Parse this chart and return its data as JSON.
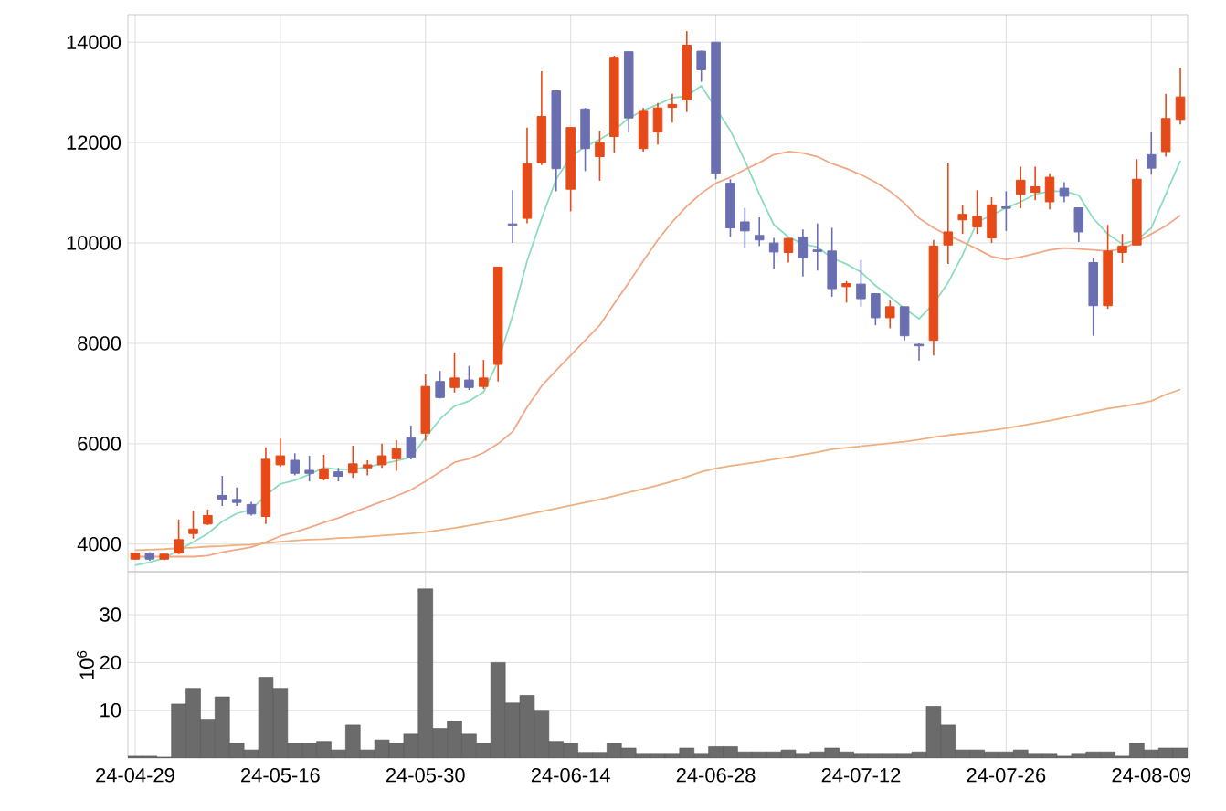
{
  "chart_data": [
    {
      "type": "candlestick",
      "tick_labels": "y",
      "grid": true,
      "categories": [
        null,
        null,
        null,
        null,
        null,
        null,
        null,
        null,
        null,
        null,
        null,
        null,
        null,
        null,
        null,
        null,
        null,
        null,
        null,
        null,
        null,
        null,
        null,
        null,
        null,
        null,
        null,
        null,
        null,
        null,
        null,
        null,
        null,
        null,
        null,
        null,
        null,
        null,
        null,
        null,
        null,
        null,
        null,
        null,
        null,
        null,
        null,
        null,
        null,
        null,
        null,
        null,
        null,
        null,
        null,
        null,
        null,
        null,
        null,
        null,
        null,
        null,
        null,
        null,
        null,
        null,
        null,
        null,
        null,
        null,
        null,
        null,
        null
      ],
      "ylim": [
        3450,
        14550
      ],
      "yticks": [
        4000,
        6000,
        8000,
        10000,
        12000,
        14000
      ],
      "ohlc": [
        [
          3700,
          3830,
          3690,
          3820
        ],
        [
          3820,
          3840,
          3670,
          3700
        ],
        [
          3700,
          3810,
          3680,
          3800
        ],
        [
          3820,
          4490,
          3800,
          4090
        ],
        [
          4210,
          4670,
          4110,
          4300
        ],
        [
          4400,
          4690,
          4380,
          4570
        ],
        [
          4970,
          5360,
          4760,
          4890
        ],
        [
          4890,
          5130,
          4760,
          4830
        ],
        [
          4790,
          4840,
          4570,
          4600
        ],
        [
          4550,
          5930,
          4400,
          5690
        ],
        [
          5580,
          6100,
          5540,
          5760
        ],
        [
          5670,
          5810,
          5370,
          5410
        ],
        [
          5470,
          5760,
          5250,
          5410
        ],
        [
          5300,
          5780,
          5270,
          5500
        ],
        [
          5440,
          5520,
          5250,
          5350
        ],
        [
          5420,
          5960,
          5320,
          5600
        ],
        [
          5520,
          5670,
          5370,
          5580
        ],
        [
          5580,
          6000,
          5520,
          5760
        ],
        [
          5700,
          6070,
          5460,
          5900
        ],
        [
          6120,
          6360,
          5690,
          5730
        ],
        [
          6210,
          7380,
          6060,
          7140
        ],
        [
          7240,
          7450,
          6900,
          6920
        ],
        [
          7120,
          7820,
          7020,
          7310
        ],
        [
          7270,
          7550,
          7070,
          7120
        ],
        [
          7140,
          7670,
          7090,
          7310
        ],
        [
          7580,
          9520,
          7240,
          9520
        ],
        [
          10380,
          11050,
          10000,
          10350
        ],
        [
          10490,
          12300,
          10390,
          11580
        ],
        [
          11600,
          13420,
          11550,
          12520
        ],
        [
          13030,
          13030,
          11030,
          11480
        ],
        [
          11070,
          12300,
          10630,
          12300
        ],
        [
          12670,
          12690,
          11430,
          11880
        ],
        [
          11720,
          12240,
          11240,
          12000
        ],
        [
          12120,
          13730,
          11790,
          13700
        ],
        [
          13810,
          13820,
          12210,
          12490
        ],
        [
          11880,
          12690,
          11820,
          12640
        ],
        [
          12210,
          12790,
          11960,
          12690
        ],
        [
          12700,
          12970,
          12400,
          12760
        ],
        [
          12850,
          14220,
          12610,
          13940
        ],
        [
          13820,
          13830,
          13210,
          13450
        ],
        [
          14000,
          14000,
          11270,
          11390
        ],
        [
          11190,
          11270,
          10120,
          10300
        ],
        [
          10420,
          10700,
          9900,
          10240
        ],
        [
          10150,
          10510,
          9940,
          10060
        ],
        [
          10000,
          10100,
          9490,
          9820
        ],
        [
          9810,
          10100,
          9610,
          10090
        ],
        [
          10120,
          10270,
          9330,
          9700
        ],
        [
          9860,
          10390,
          9450,
          9830
        ],
        [
          9840,
          10300,
          8930,
          9090
        ],
        [
          9130,
          9240,
          8810,
          9190
        ],
        [
          9180,
          9660,
          8730,
          8890
        ],
        [
          8990,
          9000,
          8360,
          8510
        ],
        [
          8510,
          8850,
          8300,
          8730
        ],
        [
          8730,
          8730,
          8060,
          8150
        ],
        [
          7980,
          8000,
          7660,
          7950
        ],
        [
          8060,
          10060,
          7760,
          9940
        ],
        [
          9960,
          11600,
          9580,
          10220
        ],
        [
          10460,
          10760,
          10180,
          10570
        ],
        [
          10320,
          11050,
          10180,
          10530
        ],
        [
          10100,
          10910,
          10000,
          10760
        ],
        [
          10720,
          11030,
          10240,
          10690
        ],
        [
          10970,
          11520,
          10690,
          11250
        ],
        [
          11010,
          11520,
          10850,
          11120
        ],
        [
          10820,
          11390,
          10670,
          11310
        ],
        [
          11090,
          11210,
          10810,
          10930
        ],
        [
          10700,
          10700,
          10020,
          10220
        ],
        [
          9610,
          9700,
          8150,
          8750
        ],
        [
          8750,
          10360,
          8690,
          9840
        ],
        [
          9810,
          10180,
          9600,
          9940
        ],
        [
          9960,
          11670,
          9960,
          11270
        ],
        [
          11760,
          12220,
          11360,
          11490
        ],
        [
          11820,
          12970,
          11720,
          12480
        ],
        [
          12460,
          13490,
          12360,
          12910
        ]
      ],
      "colors": [
        "#e64a19",
        "#6a6fb1",
        "#e64a19",
        "#e64a19",
        "#e64a19",
        "#e64a19",
        "#6a6fb1",
        "#6a6fb1",
        "#6a6fb1",
        "#e64a19",
        "#e64a19",
        "#6a6fb1",
        "#6a6fb1",
        "#e64a19",
        "#6a6fb1",
        "#e64a19",
        "#e64a19",
        "#e64a19",
        "#e64a19",
        "#6a6fb1",
        "#e64a19",
        "#6a6fb1",
        "#e64a19",
        "#6a6fb1",
        "#e64a19",
        "#e64a19",
        "#6a6fb1",
        "#e64a19",
        "#e64a19",
        "#6a6fb1",
        "#e64a19",
        "#6a6fb1",
        "#e64a19",
        "#e64a19",
        "#6a6fb1",
        "#e64a19",
        "#e64a19",
        "#e64a19",
        "#e64a19",
        "#6a6fb1",
        "#6a6fb1",
        "#6a6fb1",
        "#6a6fb1",
        "#6a6fb1",
        "#6a6fb1",
        "#e64a19",
        "#6a6fb1",
        "#6a6fb1",
        "#6a6fb1",
        "#e64a19",
        "#6a6fb1",
        "#6a6fb1",
        "#e64a19",
        "#6a6fb1",
        "#6a6fb1",
        "#e64a19",
        "#e64a19",
        "#e64a19",
        "#e64a19",
        "#e64a19",
        "#6a6fb1",
        "#e64a19",
        "#e64a19",
        "#e64a19",
        "#6a6fb1",
        "#6a6fb1",
        "#6a6fb1",
        "#e64a19",
        "#e64a19",
        "#e64a19",
        "#6a6fb1",
        "#e64a19",
        "#e64a19"
      ],
      "series": [
        {
          "type": "line",
          "color": "#8ddcbf",
          "values": [
            3580,
            3640,
            3720,
            3880,
            4040,
            4210,
            4450,
            4610,
            4690,
            4970,
            5200,
            5270,
            5390,
            5520,
            5490,
            5490,
            5540,
            5600,
            5660,
            5730,
            6120,
            6490,
            6750,
            6850,
            7030,
            7640,
            8550,
            9640,
            10490,
            11270,
            11720,
            11920,
            12060,
            12240,
            12490,
            12640,
            12760,
            12890,
            12930,
            13130,
            null,
            12240,
            11640,
            10970,
            10360,
            10120,
            9980,
            9920,
            9700,
            9580,
            9420,
            9150,
            8930,
            8690,
            8490,
            8790,
            9210,
            9760,
            10420,
            10550,
            10700,
            10820,
            10970,
            11030,
            11030,
            10950,
            10490,
            10180,
            9980,
            10060,
            10300,
            10970,
            11640
          ]
        },
        {
          "type": "line",
          "color": "#f0a886",
          "values": [
            3750,
            3750,
            3750,
            3750,
            3750,
            3770,
            3840,
            3890,
            3940,
            4040,
            4160,
            4240,
            4330,
            4430,
            4520,
            4630,
            4740,
            4850,
            4960,
            5080,
            5250,
            5440,
            5630,
            5700,
            5820,
            6000,
            6240,
            6730,
            7150,
            7460,
            7760,
            8060,
            8360,
            8790,
            9210,
            9640,
            10060,
            10420,
            10730,
            10990,
            11190,
            11310,
            11460,
            11600,
            11760,
            11820,
            11790,
            11720,
            11580,
            11480,
            11360,
            11210,
            11030,
            10790,
            10490,
            10300,
            10150,
            10020,
            9880,
            9730,
            9670,
            9720,
            9790,
            9860,
            9900,
            9880,
            9860,
            9840,
            9880,
            10020,
            10180,
            10340,
            10550
          ]
        },
        {
          "type": "line",
          "color": "#eeb07e",
          "values": [
            3880,
            3890,
            3900,
            3920,
            3930,
            3950,
            3960,
            3980,
            3990,
            4020,
            4050,
            4070,
            4090,
            4100,
            4120,
            4130,
            4150,
            4170,
            4190,
            4210,
            4240,
            4280,
            4320,
            4370,
            4420,
            4470,
            4530,
            4590,
            4650,
            4710,
            4770,
            4830,
            4890,
            4960,
            5030,
            5100,
            5170,
            5250,
            5340,
            5440,
            5510,
            5560,
            5600,
            5640,
            5690,
            5730,
            5780,
            5830,
            5890,
            5920,
            5950,
            5980,
            6010,
            6040,
            6080,
            6130,
            6170,
            6200,
            6230,
            6270,
            6310,
            6360,
            6410,
            6460,
            6520,
            6580,
            6640,
            6700,
            6740,
            6790,
            6850,
            6980,
            7080
          ]
        }
      ]
    },
    {
      "type": "bar",
      "grid": true,
      "color": "#6b6b6b",
      "ylabel": "10$^{6}$",
      "categories": [
        "24-04-29",
        null,
        null,
        null,
        null,
        null,
        null,
        null,
        null,
        null,
        "24-05-16",
        null,
        null,
        null,
        null,
        null,
        null,
        null,
        null,
        null,
        "24-05-30",
        null,
        null,
        null,
        null,
        null,
        null,
        null,
        null,
        null,
        "24-06-14",
        null,
        null,
        null,
        null,
        null,
        null,
        null,
        null,
        null,
        "24-06-28",
        null,
        null,
        null,
        null,
        null,
        null,
        null,
        null,
        null,
        "24-07-12",
        null,
        null,
        null,
        null,
        null,
        null,
        null,
        null,
        null,
        "24-07-26",
        null,
        null,
        null,
        null,
        null,
        null,
        null,
        null,
        null,
        "24-08-09",
        null,
        null
      ],
      "ylim": [
        0,
        39
      ],
      "yticks": [
        10,
        20,
        30
      ],
      "values": [
        0.4,
        0.4,
        0.2,
        11.3,
        14.6,
        8.1,
        12.8,
        3.1,
        1.7,
        16.9,
        14.6,
        3.1,
        3.1,
        3.5,
        1.7,
        6.9,
        1.7,
        3.8,
        3.1,
        5.0,
        35.4,
        6.2,
        7.7,
        5.0,
        3.1,
        20,
        11.5,
        13.1,
        10,
        3.5,
        3.1,
        1.2,
        1.2,
        3.1,
        2.1,
        0.8,
        0.8,
        0.8,
        2.1,
        0.8,
        2.4,
        2.4,
        1.3,
        1.3,
        1.3,
        1.7,
        0.8,
        1.3,
        2.1,
        1.3,
        0.8,
        0.8,
        0.8,
        0.8,
        1.3,
        10.8,
        6.9,
        1.7,
        1.7,
        1.3,
        1.3,
        1.7,
        0.8,
        0.8,
        0.4,
        0.8,
        1.3,
        1.3,
        0.4,
        3.1,
        1.7,
        2.1,
        2.1
      ]
    }
  ]
}
